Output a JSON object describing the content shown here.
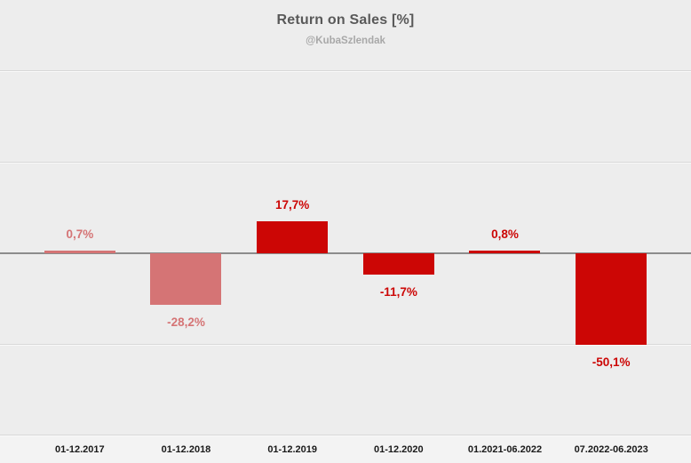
{
  "chart_data": {
    "type": "bar",
    "title": "Return on Sales [%]",
    "subtitle": "@KubaSzlendak",
    "categories": [
      "01-12.2017",
      "01-12.2018",
      "01-12.2019",
      "01-12.2020",
      "01.2021-06.2022",
      "07.2022-06.2023"
    ],
    "values": [
      0.7,
      -28.2,
      17.7,
      -11.7,
      0.8,
      -50.1
    ],
    "value_labels": [
      "0,7%",
      "-28,2%",
      "17,7%",
      "-11,7%",
      "0,8%",
      "-50,1%"
    ],
    "bar_colors": [
      "#d57475",
      "#d57475",
      "#cc0605",
      "#cc0605",
      "#cc0605",
      "#cc0605"
    ],
    "xlabel": "",
    "ylabel": "",
    "ylim": [
      -100,
      100
    ],
    "gridline_values": [
      100,
      50,
      -50,
      -100
    ],
    "grid": true,
    "legend": "none",
    "colors": {
      "strong_red": "#cc0605",
      "light_red": "#d57475",
      "background": "#ededed",
      "axis_line": "#8c8c8c",
      "gridline": "#d8d8d8",
      "title_text": "#595959",
      "subtitle_text": "#a8a8a8",
      "axis_label_text": "#1a1a1a"
    }
  }
}
